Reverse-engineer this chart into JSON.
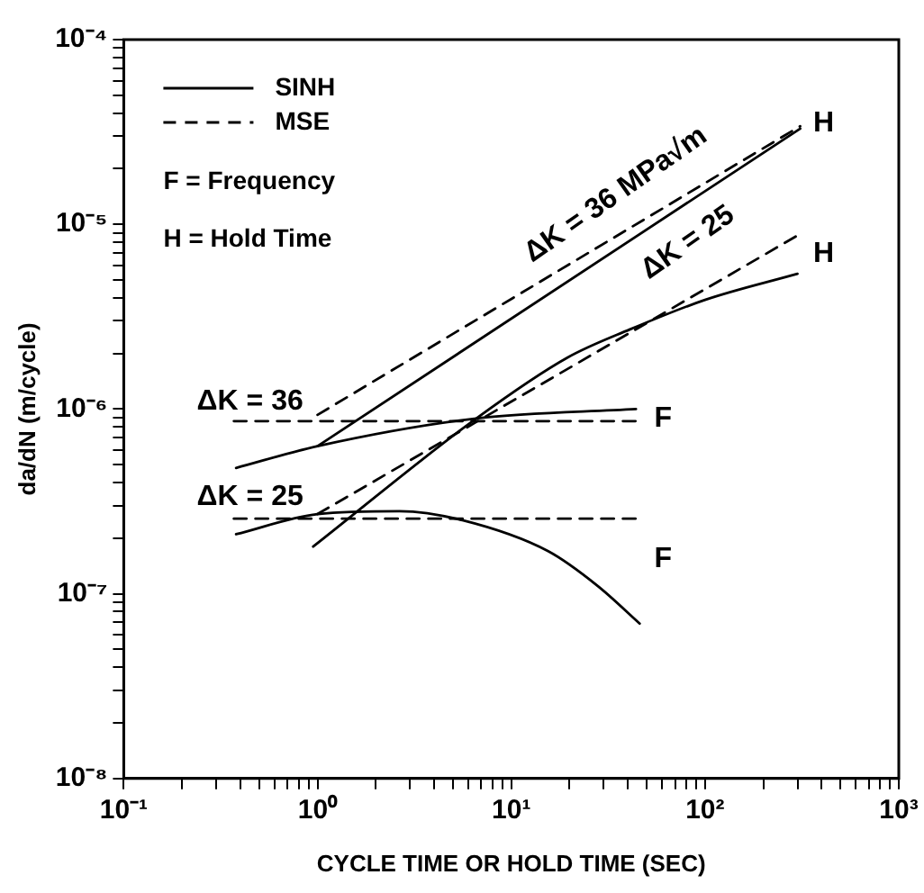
{
  "chart_data": {
    "type": "line",
    "xlabel": "CYCLE TIME OR HOLD TIME (SEC)",
    "ylabel": "da/dN (m/cycle)",
    "log": "xy",
    "grid": false,
    "legend": "top left",
    "marker": "none",
    "xlim": [
      0.1,
      1000
    ],
    "ylim": [
      1e-08,
      0.0001
    ],
    "xticks": [
      {
        "value": 0.1,
        "label": "10⁻¹"
      },
      {
        "value": 0.2,
        "label": null
      },
      {
        "value": 0.3,
        "label": null
      },
      {
        "value": 0.4,
        "label": null
      },
      {
        "value": 0.5,
        "label": null
      },
      {
        "value": 0.6,
        "label": null
      },
      {
        "value": 0.7,
        "label": null
      },
      {
        "value": 0.8,
        "label": null
      },
      {
        "value": 0.9,
        "label": null
      },
      {
        "value": 1,
        "label": "10⁰"
      },
      {
        "value": 2,
        "label": null
      },
      {
        "value": 3,
        "label": null
      },
      {
        "value": 4,
        "label": null
      },
      {
        "value": 5,
        "label": null
      },
      {
        "value": 6,
        "label": null
      },
      {
        "value": 7,
        "label": null
      },
      {
        "value": 8,
        "label": null
      },
      {
        "value": 9,
        "label": null
      },
      {
        "value": 10,
        "label": "10¹"
      },
      {
        "value": 20,
        "label": null
      },
      {
        "value": 30,
        "label": null
      },
      {
        "value": 40,
        "label": null
      },
      {
        "value": 50,
        "label": null
      },
      {
        "value": 60,
        "label": null
      },
      {
        "value": 70,
        "label": null
      },
      {
        "value": 80,
        "label": null
      },
      {
        "value": 90,
        "label": null
      },
      {
        "value": 100,
        "label": "10²"
      },
      {
        "value": 200,
        "label": null
      },
      {
        "value": 300,
        "label": null
      },
      {
        "value": 400,
        "label": null
      },
      {
        "value": 500,
        "label": null
      },
      {
        "value": 600,
        "label": null
      },
      {
        "value": 700,
        "label": null
      },
      {
        "value": 800,
        "label": null
      },
      {
        "value": 900,
        "label": null
      },
      {
        "value": 1000,
        "label": "10³"
      }
    ],
    "yticks": [
      {
        "value": 1e-08,
        "label": "10⁻⁸"
      },
      {
        "value": 2e-08,
        "label": null
      },
      {
        "value": 3e-08,
        "label": null
      },
      {
        "value": 4e-08,
        "label": null
      },
      {
        "value": 5e-08,
        "label": null
      },
      {
        "value": 6e-08,
        "label": null
      },
      {
        "value": 7e-08,
        "label": null
      },
      {
        "value": 8e-08,
        "label": null
      },
      {
        "value": 9e-08,
        "label": null
      },
      {
        "value": 1e-07,
        "label": "10⁻⁷"
      },
      {
        "value": 2e-07,
        "label": null
      },
      {
        "value": 3e-07,
        "label": null
      },
      {
        "value": 4e-07,
        "label": null
      },
      {
        "value": 5e-07,
        "label": null
      },
      {
        "value": 6e-07,
        "label": null
      },
      {
        "value": 7e-07,
        "label": null
      },
      {
        "value": 8e-07,
        "label": null
      },
      {
        "value": 9e-07,
        "label": null
      },
      {
        "value": 1e-06,
        "label": "10⁻⁶"
      },
      {
        "value": 2e-06,
        "label": null
      },
      {
        "value": 3e-06,
        "label": null
      },
      {
        "value": 4e-06,
        "label": null
      },
      {
        "value": 5e-06,
        "label": null
      },
      {
        "value": 6e-06,
        "label": null
      },
      {
        "value": 7e-06,
        "label": null
      },
      {
        "value": 8e-06,
        "label": null
      },
      {
        "value": 9e-06,
        "label": null
      },
      {
        "value": 1e-05,
        "label": "10⁻⁵"
      },
      {
        "value": 2e-05,
        "label": null
      },
      {
        "value": 3e-05,
        "label": null
      },
      {
        "value": 4e-05,
        "label": null
      },
      {
        "value": 5e-05,
        "label": null
      },
      {
        "value": 6e-05,
        "label": null
      },
      {
        "value": 7e-05,
        "label": null
      },
      {
        "value": 8e-05,
        "label": null
      },
      {
        "value": 9e-05,
        "label": null
      },
      {
        "value": 0.0001,
        "label": "10⁻⁴"
      }
    ],
    "series": [
      {
        "name": "SINH",
        "color": "#000000",
        "line_style": "solid",
        "x": [
          0.38,
          1,
          6.6,
          44
        ],
        "values": [
          4.8e-07,
          6.3e-07,
          8.9e-07,
          1e-06
        ]
      },
      {
        "name": "MSE",
        "color": "#000000",
        "line_style": "dashed",
        "x": [
          0.37,
          44
        ],
        "values": [
          8.6e-07,
          8.6e-07
        ]
      },
      {
        "color": "#000000",
        "line_style": "solid",
        "x": [
          1,
          310
        ],
        "values": [
          6.3e-07,
          3.3e-05
        ]
      },
      {
        "color": "#000000",
        "line_style": "dashed",
        "x": [
          1,
          310
        ],
        "values": [
          9.3e-07,
          3.4e-05
        ]
      },
      {
        "color": "#000000",
        "line_style": "solid",
        "x": [
          0.95,
          6.6,
          19.5,
          41,
          100,
          300
        ],
        "values": [
          1.8e-07,
          8.9e-07,
          1.9e-06,
          2.7e-06,
          3.9e-06,
          5.4e-06
        ]
      },
      {
        "color": "#000000",
        "line_style": "dashed",
        "x": [
          1,
          300
        ],
        "values": [
          2.7e-07,
          8.7e-06
        ]
      },
      {
        "color": "#000000",
        "line_style": "solid",
        "x": [
          0.38,
          1,
          2.65,
          5.6,
          15.5,
          28,
          46
        ],
        "values": [
          2.1e-07,
          2.7e-07,
          2.8e-07,
          2.5e-07,
          1.7e-07,
          1.1e-07,
          6.9e-08
        ]
      },
      {
        "color": "#000000",
        "line_style": "dashed",
        "x": [
          0.37,
          44
        ],
        "values": [
          2.55e-07,
          2.55e-07
        ]
      }
    ],
    "annotations": [
      "F = Frequency",
      "H = Hold Time",
      "ΔK = 36 MPa√m",
      "ΔK = 25",
      "ΔK = 36",
      "ΔK = 25",
      "F",
      "F",
      "H",
      "H"
    ]
  }
}
